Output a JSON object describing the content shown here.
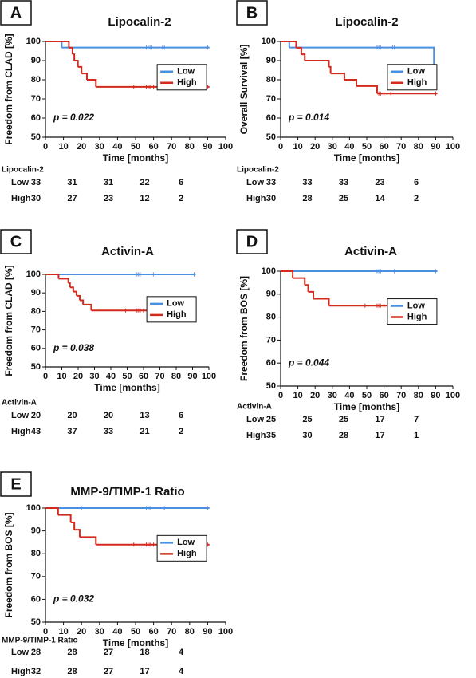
{
  "chart_data": [
    {
      "type": "step",
      "panel": "A",
      "title": "Lipocalin-2",
      "ylabel": "Freedom from CLAD [%]",
      "xlabel": "Time [months]",
      "xlim": [
        0,
        100
      ],
      "xticks": [
        0,
        10,
        20,
        30,
        40,
        50,
        60,
        70,
        80,
        90,
        100
      ],
      "ylim": [
        50,
        100
      ],
      "yticks": [
        50,
        60,
        70,
        80,
        90,
        100
      ],
      "annotation": "p = 0.022",
      "legend": "right",
      "series": [
        {
          "name": "Low",
          "color": "#4a90e2",
          "x": [
            0,
            9,
            91
          ],
          "values": [
            100,
            96.8,
            96.8
          ],
          "censored": [
            56,
            57,
            58,
            59,
            65,
            66,
            90
          ]
        },
        {
          "name": "High",
          "color": "#d42a1e",
          "x": [
            0,
            13,
            15,
            16,
            18,
            20,
            23,
            28,
            91
          ],
          "values": [
            100,
            96.7,
            93.3,
            90,
            86.7,
            83.3,
            80,
            76.3,
            76.3
          ],
          "censored": [
            49,
            56,
            57,
            58,
            60,
            64,
            66,
            90
          ]
        }
      ],
      "risk_table": {
        "label": "Lipocalin-2",
        "rows": [
          {
            "name": "Low",
            "values": [
              33,
              31,
              31,
              22,
              6
            ]
          },
          {
            "name": "High",
            "values": [
              30,
              27,
              23,
              12,
              2
            ]
          }
        ]
      }
    },
    {
      "type": "step",
      "panel": "B",
      "title": "Lipocalin-2",
      "ylabel": "Overall Survival [%]",
      "xlabel": "Time [months]",
      "xlim": [
        0,
        100
      ],
      "xticks": [
        0,
        10,
        20,
        30,
        40,
        50,
        60,
        70,
        80,
        90,
        100
      ],
      "ylim": [
        50,
        100
      ],
      "yticks": [
        50,
        60,
        70,
        80,
        90,
        100
      ],
      "annotation": "p = 0.014",
      "legend": "right",
      "series": [
        {
          "name": "Low",
          "color": "#4a90e2",
          "x": [
            0,
            5,
            89,
            91
          ],
          "values": [
            100,
            96.8,
            77.5,
            77.5
          ],
          "censored": [
            56,
            57,
            58,
            65,
            66,
            90
          ]
        },
        {
          "name": "High",
          "color": "#d42a1e",
          "x": [
            0,
            9,
            12,
            14,
            28,
            29,
            37,
            44,
            56,
            91
          ],
          "values": [
            100,
            96.7,
            93.3,
            90,
            86.7,
            83.3,
            80,
            76.7,
            72.8,
            72.8
          ],
          "censored": [
            57,
            58,
            60,
            64,
            90
          ]
        }
      ],
      "risk_table": {
        "label": "Lipocalin-2",
        "rows": [
          {
            "name": "Low",
            "values": [
              33,
              33,
              33,
              23,
              6
            ]
          },
          {
            "name": "High",
            "values": [
              30,
              28,
              25,
              14,
              2
            ]
          }
        ]
      }
    },
    {
      "type": "step",
      "panel": "C",
      "title": "Activin-A",
      "ylabel": "Freedom from CLAD [%]",
      "xlabel": "Time [months]",
      "xlim": [
        0,
        100
      ],
      "xticks": [
        0,
        10,
        20,
        30,
        40,
        50,
        60,
        70,
        80,
        90,
        100
      ],
      "ylim": [
        50,
        100
      ],
      "yticks": [
        50,
        60,
        70,
        80,
        90,
        100
      ],
      "annotation": "p = 0.038",
      "legend": "right",
      "series": [
        {
          "name": "Low",
          "color": "#4a90e2",
          "x": [
            0,
            92
          ],
          "values": [
            100,
            100
          ],
          "censored": [
            56,
            57,
            58,
            66,
            91
          ]
        },
        {
          "name": "High",
          "color": "#d42a1e",
          "x": [
            0,
            8,
            14,
            15,
            17,
            19,
            21,
            23,
            28,
            92
          ],
          "values": [
            100,
            97.7,
            95.3,
            93,
            90.7,
            88.4,
            86,
            83.7,
            80.5,
            80.5
          ],
          "censored": [
            49,
            56,
            57,
            58,
            60,
            64,
            66,
            91
          ]
        }
      ],
      "risk_table": {
        "label": "Activin-A",
        "rows": [
          {
            "name": "Low",
            "values": [
              20,
              20,
              20,
              13,
              6
            ]
          },
          {
            "name": "High",
            "values": [
              43,
              37,
              33,
              21,
              2
            ]
          }
        ]
      }
    },
    {
      "type": "step",
      "panel": "D",
      "title": "Activin-A",
      "ylabel": "Freedom from  BOS [%]",
      "xlabel": "Time [months]",
      "xlim": [
        0,
        100
      ],
      "xticks": [
        0,
        10,
        20,
        30,
        40,
        50,
        60,
        70,
        80,
        90,
        100
      ],
      "ylim": [
        50,
        100
      ],
      "yticks": [
        50,
        60,
        70,
        80,
        90,
        100
      ],
      "annotation": "p = 0.044",
      "legend": "right",
      "series": [
        {
          "name": "Low",
          "color": "#4a90e2",
          "x": [
            0,
            91
          ],
          "values": [
            100,
            100
          ],
          "censored": [
            56,
            57,
            58,
            66,
            90
          ]
        },
        {
          "name": "High",
          "color": "#d42a1e",
          "x": [
            0,
            7,
            14,
            16,
            19,
            28,
            66
          ],
          "values": [
            100,
            97,
            94,
            91,
            88,
            85,
            85
          ],
          "censored": [
            49,
            56,
            57,
            58,
            60,
            64,
            65
          ]
        }
      ],
      "risk_table": {
        "label": "Activin-A",
        "rows": [
          {
            "name": "Low",
            "values": [
              25,
              25,
              25,
              17,
              7
            ]
          },
          {
            "name": "High",
            "values": [
              35,
              30,
              28,
              17,
              1
            ]
          }
        ]
      }
    },
    {
      "type": "step",
      "panel": "E",
      "title": "MMP-9/TIMP-1 Ratio",
      "ylabel": "Freedom from BOS [%]",
      "xlabel": "Time [months]",
      "xlim": [
        0,
        100
      ],
      "xticks": [
        0,
        10,
        20,
        30,
        40,
        50,
        60,
        70,
        80,
        90,
        100
      ],
      "ylim": [
        50,
        100
      ],
      "yticks": [
        50,
        60,
        70,
        80,
        90,
        100
      ],
      "annotation": "p = 0.032",
      "legend": "right",
      "series": [
        {
          "name": "Low",
          "color": "#4a90e2",
          "x": [
            0,
            91
          ],
          "values": [
            100,
            100
          ],
          "censored": [
            20,
            56,
            57,
            58,
            66,
            90
          ]
        },
        {
          "name": "High",
          "color": "#d42a1e",
          "x": [
            0,
            7,
            14,
            16,
            19,
            28,
            91
          ],
          "values": [
            100,
            97,
            93.7,
            90.5,
            87.3,
            84,
            84
          ],
          "censored": [
            49,
            56,
            57,
            58,
            60,
            64,
            66,
            90
          ]
        }
      ],
      "risk_table": {
        "label": "MMP-9/TIMP-1 Ratio",
        "rows": [
          {
            "name": "Low",
            "values": [
              28,
              28,
              27,
              18,
              4
            ]
          },
          {
            "name": "High",
            "values": [
              32,
              28,
              27,
              17,
              4
            ]
          }
        ]
      }
    }
  ]
}
